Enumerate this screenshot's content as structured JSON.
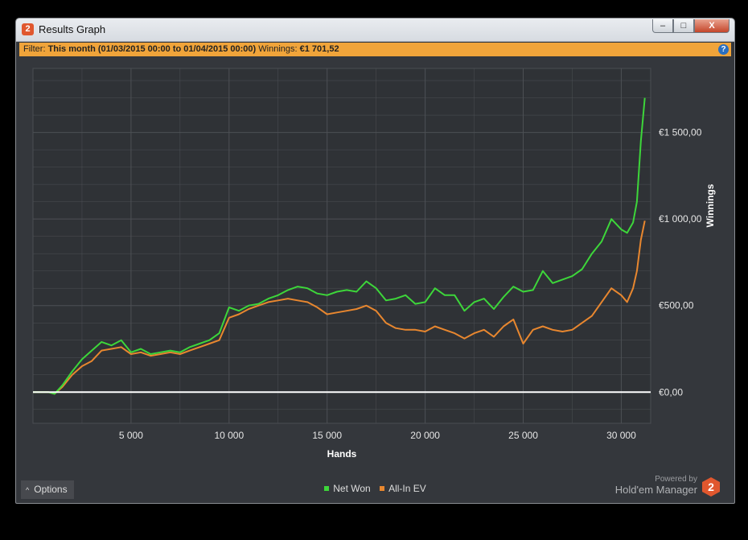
{
  "window": {
    "title": "Results Graph",
    "app_icon": "2",
    "controls": [
      "–",
      "□",
      "X"
    ]
  },
  "filter": {
    "prefix": "Filter:",
    "range": "This month (01/03/2015 00:00 to 01/04/2015 00:00)",
    "winnings_label": "Winnings:",
    "winnings_value": "€1 701,52",
    "help": "?"
  },
  "footer": {
    "options_label": "Options",
    "options_icon": "chevron-up-icon",
    "powered_by": "Powered by",
    "brand": "Hold'em Manager",
    "logo": "2"
  },
  "colors": {
    "net_won": "#3dd63a",
    "all_in_ev": "#e8872f",
    "zero_line": "#ffffff",
    "grid": "#4d5055"
  },
  "chart_data": {
    "type": "line",
    "xlabel": "Hands",
    "ylabel": "Winnings",
    "xlim": [
      0,
      31500
    ],
    "ylim": [
      -180,
      1870
    ],
    "x_ticks": [
      5000,
      10000,
      15000,
      20000,
      25000,
      30000
    ],
    "x_tick_labels": [
      "5 000",
      "10 000",
      "15 000",
      "20 000",
      "25 000",
      "30 000"
    ],
    "y_ticks": [
      0,
      500,
      1000,
      1500
    ],
    "y_tick_labels": [
      "€0,00",
      "€500,00",
      "€1 000,00",
      "€1 500,00"
    ],
    "grid": true,
    "legend_position": "bottom-center",
    "series": [
      {
        "name": "Net Won",
        "color": "#3dd63a",
        "x": [
          0,
          800,
          1100,
          1500,
          2000,
          2500,
          3000,
          3500,
          4000,
          4500,
          5000,
          5500,
          6000,
          6500,
          7000,
          7500,
          8000,
          8500,
          9000,
          9500,
          10000,
          10500,
          11000,
          11500,
          12000,
          12500,
          13000,
          13500,
          14000,
          14500,
          15000,
          15500,
          16000,
          16500,
          17000,
          17500,
          18000,
          18500,
          19000,
          19500,
          20000,
          20500,
          21000,
          21500,
          22000,
          22500,
          23000,
          23500,
          24000,
          24500,
          25000,
          25500,
          26000,
          26500,
          27000,
          27500,
          28000,
          28500,
          29000,
          29500,
          30000,
          30300,
          30600,
          30800,
          31000,
          31200
        ],
        "y": [
          0,
          0,
          -10,
          40,
          120,
          190,
          240,
          290,
          270,
          300,
          230,
          250,
          220,
          230,
          240,
          230,
          260,
          280,
          300,
          340,
          490,
          470,
          500,
          510,
          540,
          560,
          590,
          610,
          600,
          570,
          560,
          580,
          590,
          580,
          640,
          600,
          530,
          540,
          560,
          510,
          520,
          600,
          560,
          560,
          470,
          520,
          540,
          480,
          550,
          610,
          580,
          590,
          700,
          630,
          650,
          670,
          710,
          800,
          870,
          1000,
          940,
          920,
          980,
          1100,
          1450,
          1700
        ]
      },
      {
        "name": "All-In EV",
        "color": "#e8872f",
        "x": [
          0,
          800,
          1100,
          1500,
          2000,
          2500,
          3000,
          3500,
          4000,
          4500,
          5000,
          5500,
          6000,
          6500,
          7000,
          7500,
          8000,
          8500,
          9000,
          9500,
          10000,
          10500,
          11000,
          11500,
          12000,
          12500,
          13000,
          13500,
          14000,
          14500,
          15000,
          15500,
          16000,
          16500,
          17000,
          17500,
          18000,
          18500,
          19000,
          19500,
          20000,
          20500,
          21000,
          21500,
          22000,
          22500,
          23000,
          23500,
          24000,
          24500,
          25000,
          25500,
          26000,
          26500,
          27000,
          27500,
          28000,
          28500,
          29000,
          29500,
          30000,
          30300,
          30600,
          30800,
          31000,
          31200
        ],
        "y": [
          0,
          0,
          -10,
          30,
          100,
          150,
          180,
          240,
          250,
          260,
          220,
          230,
          210,
          220,
          230,
          220,
          240,
          260,
          280,
          300,
          430,
          450,
          480,
          500,
          520,
          530,
          540,
          530,
          520,
          490,
          450,
          460,
          470,
          480,
          500,
          470,
          400,
          370,
          360,
          360,
          350,
          380,
          360,
          340,
          310,
          340,
          360,
          320,
          380,
          420,
          280,
          360,
          380,
          360,
          350,
          360,
          400,
          440,
          520,
          600,
          560,
          520,
          600,
          700,
          880,
          990
        ]
      }
    ]
  }
}
